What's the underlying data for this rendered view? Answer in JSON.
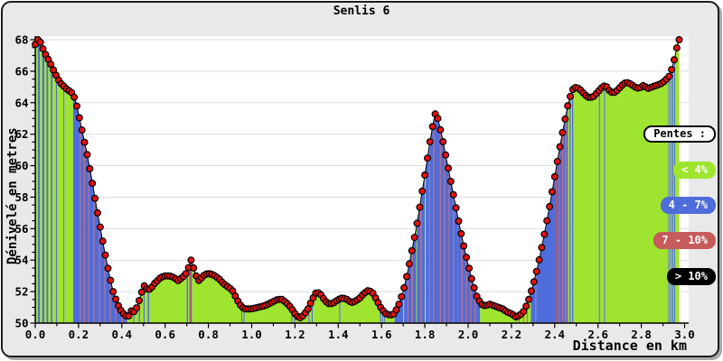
{
  "title": "Senlis 6",
  "legend": {
    "title": "Pentes :",
    "items": [
      {
        "label": "< 4%",
        "color": "#9fe42e"
      },
      {
        "label": "4 - 7%",
        "color": "#4f6cdb"
      },
      {
        "label": "7 - 10%",
        "color": "#c65b5b"
      },
      {
        "label": "> 10%",
        "color": "#000000"
      }
    ]
  },
  "chart_data": {
    "type": "area",
    "title": "Senlis 6",
    "xlabel": "Distance en km",
    "ylabel": "Dénivelé en metres",
    "xlim": [
      0.0,
      3.02
    ],
    "ylim": [
      50,
      68
    ],
    "x_major_step": 0.2,
    "x_minor_step": 0.1,
    "y_major_step": 2,
    "y_minor_step": 0.5,
    "grid": "horizontal",
    "legend_position": "right-overlay",
    "marker_interval_km": 0.012,
    "colors": {
      "g": "#9fe42e",
      "b": "#4f6cdb",
      "r": "#c65b5b",
      "k": "#000000",
      "marker": "#e31212",
      "marker_outline": "#000000",
      "grid": "#dcdcdc",
      "axis": "#000000",
      "plot_bg": "#ffffff",
      "fig_bg": "#e9e9e9"
    },
    "profile": [
      [
        0.0,
        67.7
      ],
      [
        0.005,
        67.85
      ],
      [
        0.012,
        68.0
      ],
      [
        0.02,
        68.0
      ],
      [
        0.03,
        67.6
      ],
      [
        0.05,
        67.0
      ],
      [
        0.07,
        66.5
      ],
      [
        0.09,
        65.9
      ],
      [
        0.105,
        65.5
      ],
      [
        0.12,
        65.2
      ],
      [
        0.135,
        65.0
      ],
      [
        0.15,
        64.8
      ],
      [
        0.165,
        64.7
      ],
      [
        0.175,
        64.5
      ],
      [
        0.185,
        64.2
      ],
      [
        0.2,
        63.3
      ],
      [
        0.22,
        62.0
      ],
      [
        0.24,
        60.7
      ],
      [
        0.26,
        59.2
      ],
      [
        0.28,
        57.6
      ],
      [
        0.3,
        56.1
      ],
      [
        0.32,
        54.6
      ],
      [
        0.34,
        53.2
      ],
      [
        0.36,
        52.0
      ],
      [
        0.38,
        51.2
      ],
      [
        0.4,
        50.7
      ],
      [
        0.415,
        50.5
      ],
      [
        0.43,
        50.4
      ],
      [
        0.445,
        50.8
      ],
      [
        0.46,
        50.7
      ],
      [
        0.475,
        51.2
      ],
      [
        0.49,
        51.9
      ],
      [
        0.505,
        52.4
      ],
      [
        0.52,
        52.1
      ],
      [
        0.535,
        52.2
      ],
      [
        0.55,
        52.5
      ],
      [
        0.565,
        52.7
      ],
      [
        0.58,
        52.9
      ],
      [
        0.6,
        53.0
      ],
      [
        0.62,
        53.0
      ],
      [
        0.64,
        52.9
      ],
      [
        0.66,
        52.7
      ],
      [
        0.68,
        52.9
      ],
      [
        0.7,
        53.2
      ],
      [
        0.71,
        53.6
      ],
      [
        0.72,
        54.0
      ],
      [
        0.73,
        53.6
      ],
      [
        0.74,
        53.1
      ],
      [
        0.755,
        52.7
      ],
      [
        0.77,
        52.9
      ],
      [
        0.785,
        53.1
      ],
      [
        0.8,
        53.15
      ],
      [
        0.815,
        53.1
      ],
      [
        0.83,
        53.0
      ],
      [
        0.85,
        52.8
      ],
      [
        0.87,
        52.5
      ],
      [
        0.89,
        52.3
      ],
      [
        0.91,
        52.1
      ],
      [
        0.925,
        51.7
      ],
      [
        0.94,
        51.3
      ],
      [
        0.955,
        51.0
      ],
      [
        0.97,
        50.9
      ],
      [
        1.0,
        50.9
      ],
      [
        1.03,
        51.0
      ],
      [
        1.06,
        51.1
      ],
      [
        1.09,
        51.3
      ],
      [
        1.12,
        51.5
      ],
      [
        1.14,
        51.5
      ],
      [
        1.16,
        51.3
      ],
      [
        1.18,
        51.0
      ],
      [
        1.2,
        50.6
      ],
      [
        1.22,
        50.3
      ],
      [
        1.24,
        50.5
      ],
      [
        1.26,
        50.9
      ],
      [
        1.28,
        51.5
      ],
      [
        1.3,
        52.0
      ],
      [
        1.32,
        51.8
      ],
      [
        1.34,
        51.4
      ],
      [
        1.36,
        51.2
      ],
      [
        1.38,
        51.3
      ],
      [
        1.4,
        51.5
      ],
      [
        1.42,
        51.6
      ],
      [
        1.44,
        51.5
      ],
      [
        1.46,
        51.3
      ],
      [
        1.48,
        51.4
      ],
      [
        1.5,
        51.6
      ],
      [
        1.52,
        51.9
      ],
      [
        1.54,
        52.1
      ],
      [
        1.56,
        51.9
      ],
      [
        1.58,
        51.4
      ],
      [
        1.6,
        50.9
      ],
      [
        1.62,
        50.6
      ],
      [
        1.64,
        50.5
      ],
      [
        1.66,
        50.6
      ],
      [
        1.68,
        51.2
      ],
      [
        1.7,
        52.0
      ],
      [
        1.72,
        53.2
      ],
      [
        1.74,
        54.6
      ],
      [
        1.76,
        56.0
      ],
      [
        1.78,
        57.7
      ],
      [
        1.8,
        59.4
      ],
      [
        1.82,
        61.2
      ],
      [
        1.84,
        62.8
      ],
      [
        1.85,
        63.4
      ],
      [
        1.86,
        63.0
      ],
      [
        1.88,
        61.8
      ],
      [
        1.9,
        60.4
      ],
      [
        1.92,
        59.0
      ],
      [
        1.94,
        57.6
      ],
      [
        1.96,
        56.2
      ],
      [
        1.98,
        54.9
      ],
      [
        2.0,
        53.7
      ],
      [
        2.02,
        52.6
      ],
      [
        2.04,
        51.7
      ],
      [
        2.06,
        51.2
      ],
      [
        2.08,
        51.1
      ],
      [
        2.1,
        51.2
      ],
      [
        2.12,
        51.1
      ],
      [
        2.14,
        51.0
      ],
      [
        2.16,
        50.9
      ],
      [
        2.18,
        50.7
      ],
      [
        2.2,
        50.6
      ],
      [
        2.22,
        50.4
      ],
      [
        2.24,
        50.5
      ],
      [
        2.26,
        50.8
      ],
      [
        2.28,
        51.5
      ],
      [
        2.3,
        52.4
      ],
      [
        2.32,
        53.5
      ],
      [
        2.34,
        54.8
      ],
      [
        2.36,
        56.2
      ],
      [
        2.38,
        57.7
      ],
      [
        2.4,
        59.3
      ],
      [
        2.42,
        60.9
      ],
      [
        2.44,
        62.4
      ],
      [
        2.46,
        63.8
      ],
      [
        2.48,
        64.8
      ],
      [
        2.5,
        65.0
      ],
      [
        2.52,
        64.8
      ],
      [
        2.54,
        64.5
      ],
      [
        2.56,
        64.3
      ],
      [
        2.58,
        64.4
      ],
      [
        2.6,
        64.7
      ],
      [
        2.62,
        65.0
      ],
      [
        2.635,
        65.1
      ],
      [
        2.65,
        64.8
      ],
      [
        2.67,
        64.6
      ],
      [
        2.69,
        64.8
      ],
      [
        2.71,
        65.1
      ],
      [
        2.73,
        65.3
      ],
      [
        2.75,
        65.2
      ],
      [
        2.77,
        65.0
      ],
      [
        2.79,
        64.9
      ],
      [
        2.81,
        65.1
      ],
      [
        2.83,
        64.9
      ],
      [
        2.85,
        65.0
      ],
      [
        2.87,
        65.1
      ],
      [
        2.89,
        65.2
      ],
      [
        2.91,
        65.4
      ],
      [
        2.93,
        65.7
      ],
      [
        2.94,
        66.1
      ],
      [
        2.95,
        66.6
      ],
      [
        2.96,
        67.2
      ],
      [
        2.97,
        67.9
      ],
      [
        2.975,
        68.0
      ]
    ],
    "slope_segments": [
      [
        0.0,
        0.004,
        "r"
      ],
      [
        0.004,
        0.012,
        "g"
      ],
      [
        0.012,
        0.022,
        "b"
      ],
      [
        0.022,
        0.032,
        "g"
      ],
      [
        0.032,
        0.042,
        "b"
      ],
      [
        0.042,
        0.052,
        "g"
      ],
      [
        0.052,
        0.06,
        "b"
      ],
      [
        0.06,
        0.072,
        "g"
      ],
      [
        0.072,
        0.08,
        "b"
      ],
      [
        0.08,
        0.095,
        "g"
      ],
      [
        0.095,
        0.1,
        "b"
      ],
      [
        0.1,
        0.13,
        "g"
      ],
      [
        0.13,
        0.135,
        "b"
      ],
      [
        0.135,
        0.175,
        "g"
      ],
      [
        0.175,
        0.205,
        "b"
      ],
      [
        0.205,
        0.209,
        "r"
      ],
      [
        0.209,
        0.225,
        "b"
      ],
      [
        0.225,
        0.229,
        "r"
      ],
      [
        0.229,
        0.246,
        "b"
      ],
      [
        0.246,
        0.25,
        "r"
      ],
      [
        0.25,
        0.27,
        "b"
      ],
      [
        0.27,
        0.274,
        "r"
      ],
      [
        0.274,
        0.295,
        "b"
      ],
      [
        0.295,
        0.299,
        "r"
      ],
      [
        0.299,
        0.32,
        "b"
      ],
      [
        0.32,
        0.324,
        "r"
      ],
      [
        0.324,
        0.345,
        "b"
      ],
      [
        0.345,
        0.349,
        "r"
      ],
      [
        0.349,
        0.37,
        "b"
      ],
      [
        0.37,
        0.374,
        "r"
      ],
      [
        0.374,
        0.4,
        "b"
      ],
      [
        0.4,
        0.404,
        "r"
      ],
      [
        0.404,
        0.425,
        "b"
      ],
      [
        0.425,
        0.452,
        "g"
      ],
      [
        0.452,
        0.458,
        "b"
      ],
      [
        0.458,
        0.478,
        "g"
      ],
      [
        0.478,
        0.484,
        "b"
      ],
      [
        0.484,
        0.5,
        "g"
      ],
      [
        0.5,
        0.506,
        "b"
      ],
      [
        0.506,
        0.52,
        "g"
      ],
      [
        0.52,
        0.526,
        "b"
      ],
      [
        0.526,
        0.7,
        "g"
      ],
      [
        0.7,
        0.706,
        "b"
      ],
      [
        0.706,
        0.712,
        "g"
      ],
      [
        0.712,
        0.718,
        "r"
      ],
      [
        0.718,
        0.724,
        "b"
      ],
      [
        0.724,
        0.952,
        "g"
      ],
      [
        0.952,
        0.957,
        "b"
      ],
      [
        0.957,
        0.962,
        "g"
      ],
      [
        0.962,
        0.967,
        "b"
      ],
      [
        0.967,
        1.183,
        "g"
      ],
      [
        1.183,
        1.188,
        "b"
      ],
      [
        1.188,
        1.196,
        "g"
      ],
      [
        1.196,
        1.201,
        "b"
      ],
      [
        1.201,
        1.262,
        "g"
      ],
      [
        1.262,
        1.267,
        "b"
      ],
      [
        1.267,
        1.277,
        "g"
      ],
      [
        1.277,
        1.282,
        "b"
      ],
      [
        1.282,
        1.405,
        "g"
      ],
      [
        1.405,
        1.41,
        "b"
      ],
      [
        1.41,
        1.592,
        "g"
      ],
      [
        1.592,
        1.597,
        "b"
      ],
      [
        1.597,
        1.602,
        "g"
      ],
      [
        1.602,
        1.607,
        "b"
      ],
      [
        1.607,
        1.612,
        "g"
      ],
      [
        1.612,
        1.617,
        "b"
      ],
      [
        1.617,
        1.66,
        "g"
      ],
      [
        1.66,
        1.7,
        "b"
      ],
      [
        1.7,
        1.704,
        "g"
      ],
      [
        1.704,
        1.72,
        "b"
      ],
      [
        1.72,
        1.724,
        "r"
      ],
      [
        1.724,
        1.74,
        "b"
      ],
      [
        1.74,
        1.744,
        "r"
      ],
      [
        1.744,
        1.76,
        "b"
      ],
      [
        1.76,
        1.764,
        "g"
      ],
      [
        1.764,
        1.78,
        "b"
      ],
      [
        1.78,
        1.784,
        "r"
      ],
      [
        1.784,
        1.8,
        "b"
      ],
      [
        1.8,
        1.804,
        "g"
      ],
      [
        1.804,
        1.82,
        "b"
      ],
      [
        1.82,
        1.824,
        "r"
      ],
      [
        1.824,
        1.84,
        "b"
      ],
      [
        1.84,
        1.844,
        "r"
      ],
      [
        1.844,
        1.87,
        "b"
      ],
      [
        1.87,
        1.874,
        "r"
      ],
      [
        1.874,
        1.89,
        "b"
      ],
      [
        1.89,
        1.894,
        "r"
      ],
      [
        1.894,
        1.91,
        "b"
      ],
      [
        1.91,
        1.914,
        "r"
      ],
      [
        1.914,
        1.93,
        "b"
      ],
      [
        1.93,
        1.934,
        "r"
      ],
      [
        1.934,
        1.95,
        "b"
      ],
      [
        1.95,
        1.954,
        "r"
      ],
      [
        1.954,
        1.97,
        "b"
      ],
      [
        1.97,
        1.974,
        "r"
      ],
      [
        1.974,
        1.99,
        "b"
      ],
      [
        1.99,
        1.994,
        "r"
      ],
      [
        1.994,
        2.01,
        "b"
      ],
      [
        2.01,
        2.014,
        "r"
      ],
      [
        2.014,
        2.03,
        "b"
      ],
      [
        2.03,
        2.034,
        "r"
      ],
      [
        2.034,
        2.055,
        "b"
      ],
      [
        2.055,
        2.224,
        "g"
      ],
      [
        2.224,
        2.229,
        "r"
      ],
      [
        2.229,
        2.234,
        "g"
      ],
      [
        2.234,
        2.239,
        "b"
      ],
      [
        2.239,
        2.255,
        "g"
      ],
      [
        2.255,
        2.26,
        "r"
      ],
      [
        2.26,
        2.272,
        "g"
      ],
      [
        2.272,
        2.276,
        "r"
      ],
      [
        2.276,
        2.29,
        "g"
      ],
      [
        2.29,
        2.31,
        "b"
      ],
      [
        2.31,
        2.314,
        "r"
      ],
      [
        2.314,
        2.405,
        "b"
      ],
      [
        2.405,
        2.409,
        "r"
      ],
      [
        2.409,
        2.42,
        "b"
      ],
      [
        2.42,
        2.424,
        "r"
      ],
      [
        2.424,
        2.435,
        "b"
      ],
      [
        2.435,
        2.439,
        "r"
      ],
      [
        2.439,
        2.45,
        "b"
      ],
      [
        2.45,
        2.454,
        "r"
      ],
      [
        2.454,
        2.462,
        "b"
      ],
      [
        2.462,
        2.468,
        "g"
      ],
      [
        2.468,
        2.474,
        "b"
      ],
      [
        2.474,
        2.48,
        "g"
      ],
      [
        2.48,
        2.486,
        "b"
      ],
      [
        2.486,
        2.604,
        "g"
      ],
      [
        2.604,
        2.609,
        "b"
      ],
      [
        2.609,
        2.628,
        "g"
      ],
      [
        2.628,
        2.633,
        "b"
      ],
      [
        2.633,
        2.925,
        "g"
      ],
      [
        2.925,
        2.93,
        "b"
      ],
      [
        2.93,
        2.934,
        "g"
      ],
      [
        2.934,
        2.939,
        "b"
      ],
      [
        2.939,
        2.943,
        "g"
      ],
      [
        2.943,
        2.948,
        "b"
      ],
      [
        2.948,
        2.952,
        "g"
      ],
      [
        2.952,
        2.957,
        "b"
      ],
      [
        2.957,
        2.975,
        "g"
      ]
    ]
  }
}
